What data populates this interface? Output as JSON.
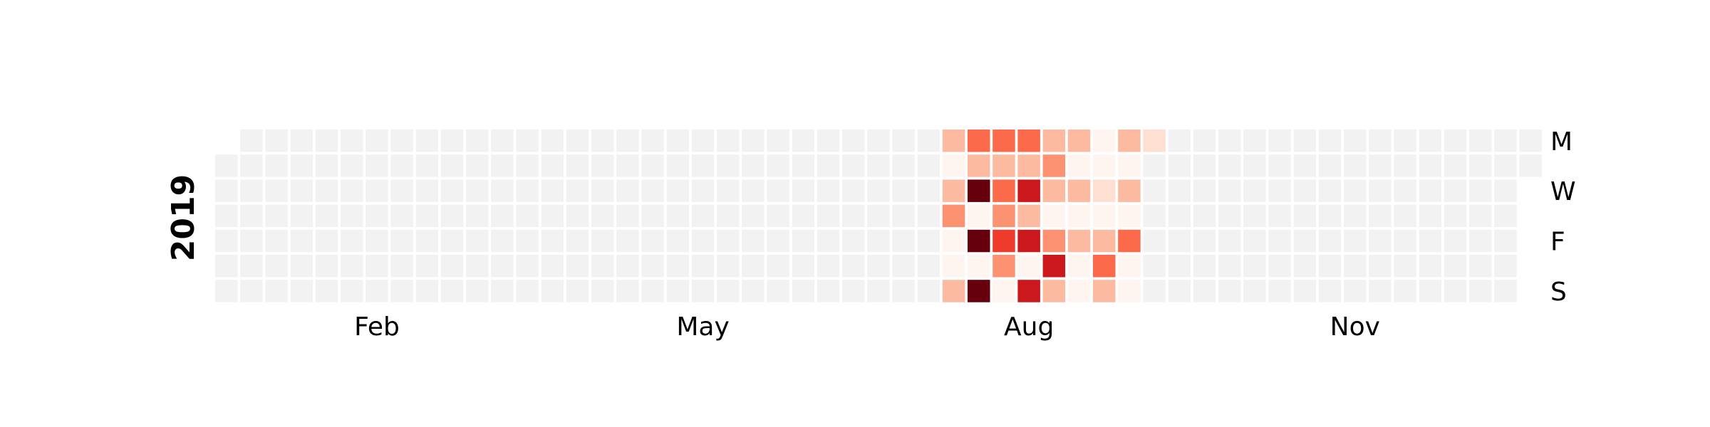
{
  "chart_data": {
    "type": "heatmap",
    "year": "2019",
    "colors": {
      "empty": "#f2f2f2",
      "scale": [
        "#fff5f0",
        "#fee0d2",
        "#fcbba1",
        "#fc9272",
        "#fb6a4a",
        "#ef3b2c",
        "#cb181d",
        "#67000d"
      ]
    },
    "day_labels": [
      {
        "row": 0,
        "label": "M"
      },
      {
        "row": 2,
        "label": "W"
      },
      {
        "row": 4,
        "label": "F"
      },
      {
        "row": 6,
        "label": "S"
      }
    ],
    "month_labels": [
      {
        "week": 6,
        "label": "Feb"
      },
      {
        "week": 19,
        "label": "May"
      },
      {
        "week": 32,
        "label": "Aug"
      },
      {
        "week": 45,
        "label": "Nov"
      }
    ],
    "first_week": {
      "week": 0,
      "start_row": 1
    },
    "last_week": {
      "week": 52,
      "rows": 2
    },
    "weeks": 53,
    "active_weeks": [
      {
        "week": 29,
        "levels": [
          2,
          0,
          2,
          3,
          0,
          0,
          2
        ]
      },
      {
        "week": 30,
        "levels": [
          4,
          2,
          7,
          0,
          7,
          0,
          7
        ]
      },
      {
        "week": 31,
        "levels": [
          4,
          2,
          4,
          3,
          5,
          3,
          0
        ]
      },
      {
        "week": 32,
        "levels": [
          4,
          2,
          6,
          2,
          6,
          0,
          6
        ]
      },
      {
        "week": 33,
        "levels": [
          2,
          3,
          2,
          0,
          3,
          6,
          2
        ]
      },
      {
        "week": 34,
        "levels": [
          2,
          0,
          2,
          0,
          2,
          0,
          0
        ]
      },
      {
        "week": 35,
        "levels": [
          0,
          0,
          1,
          0,
          2,
          4,
          2
        ]
      },
      {
        "week": 36,
        "levels": [
          2,
          0,
          2,
          0,
          4,
          0,
          0
        ]
      },
      {
        "week": 37,
        "levels": [
          1,
          null,
          null,
          null,
          null,
          null,
          null
        ]
      }
    ]
  }
}
